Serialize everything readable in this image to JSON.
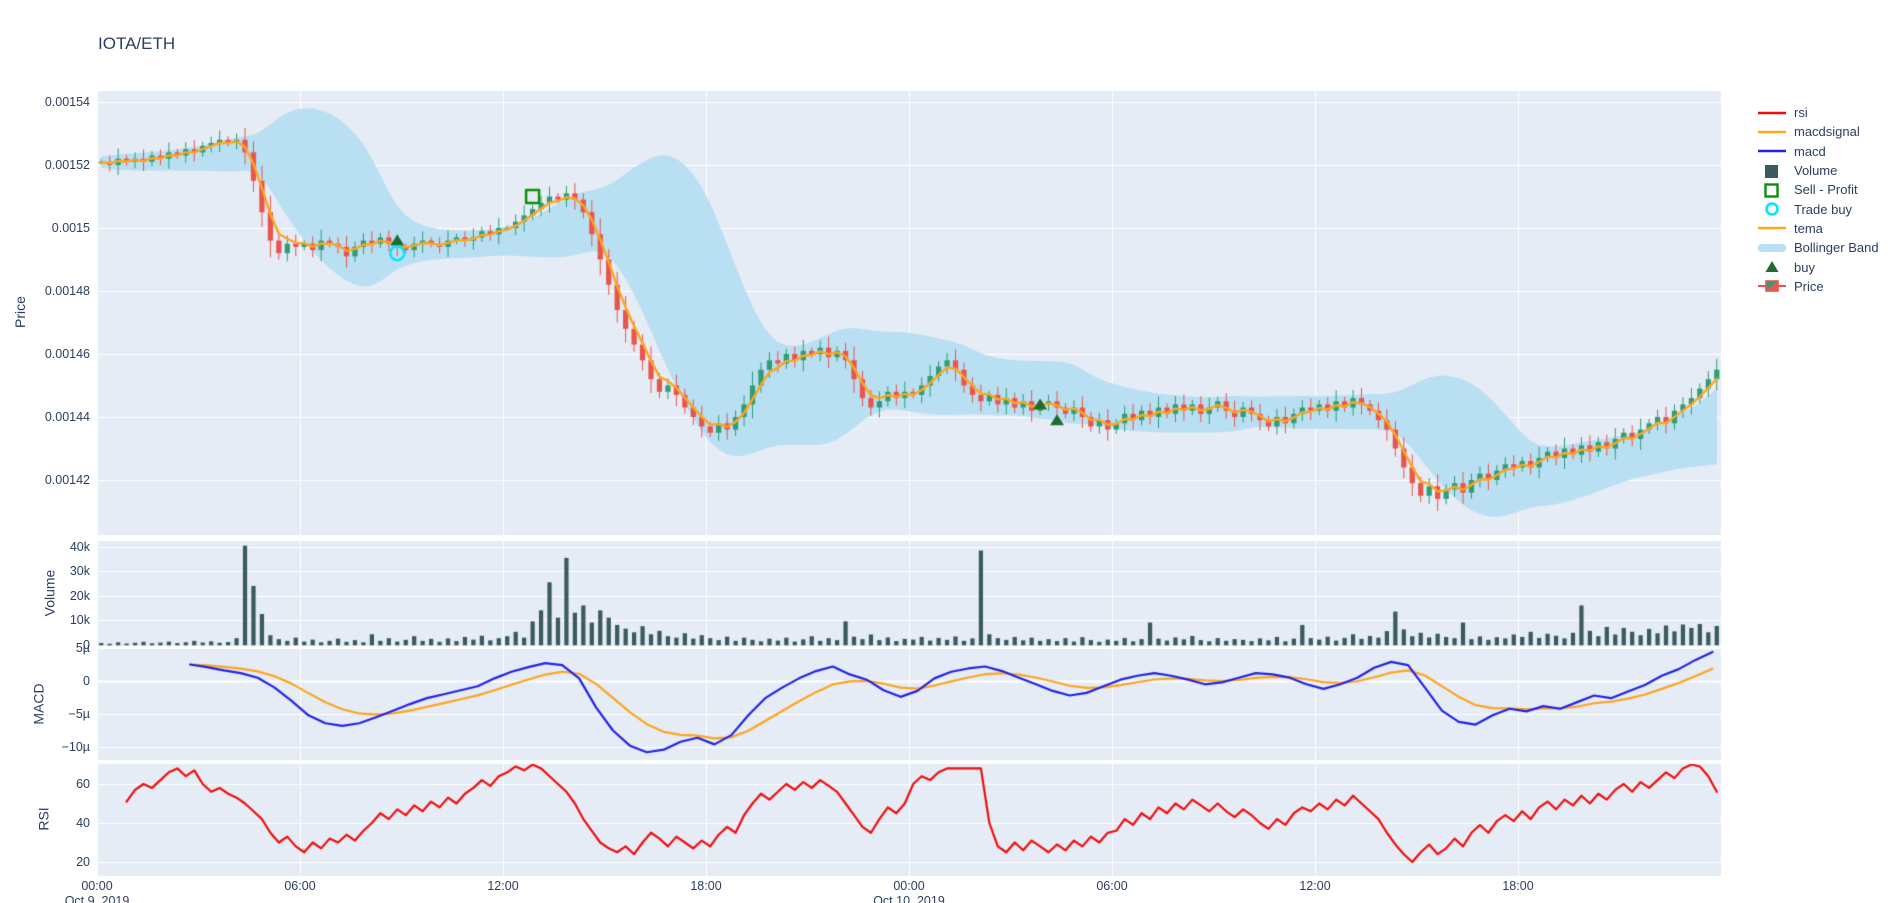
{
  "title": "IOTA/ETH",
  "colors": {
    "paper_bg": "#ffffff",
    "plot_bg": "#e5ecf6",
    "grid": "#ffffff",
    "text": "#2a3f5f",
    "candle_up": "#2d9e78",
    "candle_down": "#e8554e",
    "bollinger": "#b9dff2",
    "tema": "#ffa51e",
    "macd": "#2323e6",
    "macdsignal": "#ffa51e",
    "rsi": "#f20d0d",
    "volume_bar": "#3a5a5e",
    "buy_marker": "#226b2f",
    "sell_profit": "#0a8f0a",
    "trade_buy": "#00e5ff"
  },
  "legend": [
    {
      "label": "rsi",
      "symbol": "line",
      "color": "#f20d0d"
    },
    {
      "label": "macdsignal",
      "symbol": "line",
      "color": "#ffa51e"
    },
    {
      "label": "macd",
      "symbol": "line",
      "color": "#2323e6"
    },
    {
      "label": "Volume",
      "symbol": "square_fill",
      "color": "#3a5a5e"
    },
    {
      "label": "Sell - Profit",
      "symbol": "square_open",
      "color": "#0a8f0a"
    },
    {
      "label": "Trade buy",
      "symbol": "circle_open",
      "color": "#00e5ff"
    },
    {
      "label": "tema",
      "symbol": "line",
      "color": "#ffa51e"
    },
    {
      "label": "Bollinger Band",
      "symbol": "band",
      "color": "#b9dff2"
    },
    {
      "label": "buy",
      "symbol": "triangle",
      "color": "#226b2f"
    },
    {
      "label": "Price",
      "symbol": "candle",
      "color": "#2d9e78"
    }
  ],
  "axes": {
    "x": {
      "ticks": [
        {
          "t": 0,
          "label": "00:00"
        },
        {
          "t": 6,
          "label": "06:00"
        },
        {
          "t": 12,
          "label": "12:00"
        },
        {
          "t": 18,
          "label": "18:00"
        },
        {
          "t": 24,
          "label": "00:00"
        },
        {
          "t": 30,
          "label": "06:00"
        },
        {
          "t": 36,
          "label": "12:00"
        },
        {
          "t": 42,
          "label": "18:00"
        }
      ],
      "dates": [
        {
          "t": 0,
          "label": "Oct 9, 2019"
        },
        {
          "t": 24,
          "label": "Oct 10, 2019"
        }
      ]
    },
    "price": {
      "title": "Price",
      "ticks": [
        {
          "v": 1540,
          "label": "0.00154"
        },
        {
          "v": 1520,
          "label": "0.00152"
        },
        {
          "v": 1500,
          "label": "0.0015"
        },
        {
          "v": 1480,
          "label": "0.00148"
        },
        {
          "v": 1460,
          "label": "0.00146"
        },
        {
          "v": 1440,
          "label": "0.00144"
        },
        {
          "v": 1420,
          "label": "0.00142"
        }
      ]
    },
    "volume": {
      "title": "Volume",
      "ticks": [
        {
          "v": 40000,
          "label": "40k"
        },
        {
          "v": 30000,
          "label": "30k"
        },
        {
          "v": 20000,
          "label": "20k"
        },
        {
          "v": 10000,
          "label": "10k"
        },
        {
          "v": 0,
          "label": "0"
        }
      ]
    },
    "macd": {
      "title": "MACD",
      "ticks": [
        {
          "v": 5,
          "label": "5µ"
        },
        {
          "v": 0,
          "label": "0"
        },
        {
          "v": -5,
          "label": "−5µ"
        },
        {
          "v": -10,
          "label": "−10µ"
        }
      ]
    },
    "rsi": {
      "title": "RSI",
      "ticks": [
        {
          "v": 60,
          "label": "60"
        },
        {
          "v": 40,
          "label": "40"
        },
        {
          "v": 20,
          "label": "20"
        }
      ]
    }
  },
  "chart_data": {
    "type": "candlestick",
    "pair": "IOTA/ETH",
    "x_start": "Oct 9, 2019 00:00",
    "x_end": "Oct 11, 2019 00:00",
    "interval_minutes": 15,
    "price_unit_micro": 1e-06,
    "subplots": [
      "Price",
      "Volume",
      "MACD",
      "RSI"
    ],
    "close_micro": [
      1521,
      1520,
      1522,
      1521,
      1522,
      1521,
      1523,
      1522,
      1524,
      1523,
      1525,
      1524,
      1526,
      1527,
      1528,
      1527,
      1528,
      1524,
      1515,
      1505,
      1496,
      1492,
      1495,
      1494,
      1495,
      1493,
      1496,
      1495,
      1494,
      1491,
      1494,
      1496,
      1495,
      1497,
      1495,
      1494,
      1493,
      1495,
      1496,
      1495,
      1494,
      1496,
      1497,
      1496,
      1497,
      1499,
      1498,
      1500,
      1500,
      1502,
      1504,
      1506,
      1508,
      1510,
      1509,
      1511,
      1509,
      1505,
      1498,
      1490,
      1482,
      1474,
      1468,
      1463,
      1458,
      1452,
      1448,
      1450,
      1447,
      1443,
      1440,
      1437,
      1435,
      1438,
      1436,
      1440,
      1444,
      1450,
      1455,
      1458,
      1457,
      1460,
      1458,
      1461,
      1460,
      1462,
      1459,
      1461,
      1458,
      1452,
      1446,
      1443,
      1445,
      1448,
      1446,
      1448,
      1447,
      1450,
      1453,
      1456,
      1458,
      1455,
      1450,
      1447,
      1445,
      1447,
      1444,
      1446,
      1443,
      1445,
      1442,
      1444,
      1445,
      1443,
      1441,
      1443,
      1440,
      1437,
      1439,
      1436,
      1438,
      1441,
      1439,
      1442,
      1440,
      1443,
      1441,
      1444,
      1442,
      1444,
      1441,
      1443,
      1445,
      1442,
      1440,
      1443,
      1441,
      1439,
      1437,
      1440,
      1438,
      1441,
      1443,
      1442,
      1444,
      1442,
      1445,
      1443,
      1446,
      1444,
      1442,
      1439,
      1436,
      1430,
      1424,
      1419,
      1415,
      1418,
      1414,
      1417,
      1419,
      1416,
      1420,
      1422,
      1420,
      1423,
      1425,
      1424,
      1426,
      1424,
      1427,
      1429,
      1427,
      1430,
      1428,
      1431,
      1429,
      1432,
      1430,
      1433,
      1435,
      1433,
      1436,
      1438,
      1440,
      1438,
      1442,
      1444,
      1446,
      1449,
      1452,
      1455
    ],
    "volume": [
      600,
      300,
      900,
      400,
      700,
      1100,
      500,
      800,
      1200,
      600,
      900,
      1500,
      800,
      1300,
      700,
      1000,
      2600,
      40500,
      24000,
      12500,
      3800,
      2200,
      1500,
      2800,
      1200,
      2000,
      900,
      1500,
      2400,
      1100,
      1800,
      900,
      4200,
      1500,
      2600,
      1200,
      1900,
      3400,
      1500,
      2300,
      1100,
      2500,
      1400,
      3100,
      2000,
      3600,
      1700,
      2600,
      3400,
      5200,
      2800,
      9500,
      14000,
      25500,
      11000,
      35500,
      13000,
      16000,
      9000,
      14000,
      11000,
      8000,
      6500,
      5000,
      7500,
      4200,
      5600,
      3400,
      2800,
      4600,
      2400,
      3800,
      2600,
      1800,
      3200,
      1500,
      2800,
      1900,
      1300,
      2400,
      1600,
      2800,
      1200,
      2100,
      3400,
      1500,
      2600,
      1800,
      9500,
      3200,
      2200,
      4100,
      1800,
      2900,
      1400,
      2300,
      2000,
      3100,
      1600,
      2700,
      1900,
      3300,
      1500,
      2500,
      38500,
      4200,
      2600,
      1900,
      3100,
      1700,
      2800,
      1500,
      2200,
      1400,
      2600,
      1200,
      3000,
      1800,
      1100,
      2000,
      1500,
      2700,
      1300,
      2200,
      9000,
      2400,
      1600,
      2900,
      2100,
      3500,
      1800,
      1300,
      2600,
      1500,
      2200,
      1900,
      1400,
      2500,
      1700,
      3100,
      1300,
      2400,
      8000,
      2600,
      2000,
      3200,
      1600,
      2700,
      4200,
      2300,
      3500,
      2800,
      5500,
      13500,
      6200,
      3400,
      4800,
      2900,
      4400,
      3100,
      2600,
      9000,
      2200,
      3300,
      1900,
      3000,
      2500,
      4100,
      3100,
      5200,
      2700,
      4400,
      3600,
      2500,
      4800,
      16000,
      5600,
      3400,
      7200,
      4100,
      6800,
      5200,
      3800,
      6400,
      4600,
      7800,
      5400,
      8200,
      6800,
      8400,
      5000,
      7600
    ],
    "macd_micro": [
      null,
      null,
      null,
      null,
      null,
      2.5,
      2.1,
      1.6,
      1.2,
      0.5,
      -1.0,
      -3.0,
      -5.2,
      -6.4,
      -6.8,
      -6.4,
      -5.5,
      -4.5,
      -3.5,
      -2.6,
      -2.0,
      -1.4,
      -0.8,
      0.4,
      1.4,
      2.1,
      2.7,
      2.4,
      0.4,
      -4.0,
      -7.5,
      -9.8,
      -10.8,
      -10.4,
      -9.2,
      -8.6,
      -9.6,
      -8.2,
      -5.2,
      -2.6,
      -1.0,
      0.4,
      1.5,
      2.2,
      1.0,
      0.2,
      -1.4,
      -2.4,
      -1.5,
      0.4,
      1.4,
      1.9,
      2.2,
      1.5,
      0.5,
      -0.5,
      -1.5,
      -2.2,
      -1.8,
      -0.8,
      0.2,
      0.8,
      1.2,
      0.8,
      0.2,
      -0.5,
      -0.2,
      0.5,
      1.2,
      1.0,
      0.5,
      -0.5,
      -1.2,
      -0.5,
      0.5,
      2.0,
      2.9,
      2.4,
      -1.0,
      -4.5,
      -6.2,
      -6.6,
      -5.2,
      -4.2,
      -4.6,
      -3.8,
      -4.2,
      -3.2,
      -2.2,
      -2.6,
      -1.6,
      -0.6,
      0.8,
      1.8,
      3.2,
      4.4
    ],
    "rsi": [
      null,
      null,
      null,
      51,
      57,
      60,
      58,
      62,
      66,
      68,
      64,
      67,
      60,
      56,
      58,
      55,
      53,
      50,
      46,
      42,
      35,
      30,
      33,
      28,
      25,
      30,
      27,
      32,
      30,
      34,
      31,
      36,
      40,
      45,
      42,
      47,
      44,
      49,
      46,
      51,
      48,
      53,
      50,
      55,
      58,
      62,
      59,
      64,
      66,
      69,
      67,
      70,
      68,
      64,
      60,
      56,
      50,
      42,
      36,
      30,
      27,
      25,
      28,
      24,
      30,
      35,
      32,
      28,
      33,
      30,
      27,
      31,
      28,
      34,
      38,
      35,
      44,
      50,
      55,
      52,
      56,
      60,
      57,
      61,
      58,
      62,
      59,
      56,
      50,
      44,
      38,
      35,
      42,
      48,
      45,
      50,
      60,
      64,
      62,
      66,
      68,
      68,
      68,
      68,
      68,
      40,
      28,
      25,
      30,
      26,
      31,
      28,
      25,
      29,
      26,
      31,
      28,
      33,
      30,
      35,
      36,
      42,
      39,
      45,
      42,
      48,
      45,
      50,
      47,
      52,
      49,
      46,
      50,
      46,
      43,
      47,
      44,
      40,
      37,
      42,
      39,
      45,
      48,
      46,
      50,
      47,
      52,
      49,
      54,
      50,
      46,
      42,
      35,
      29,
      24,
      20,
      25,
      29,
      24,
      27,
      32,
      28,
      35,
      39,
      35,
      41,
      44,
      41,
      46,
      42,
      48,
      51,
      47,
      52,
      49,
      54,
      50,
      55,
      52,
      57,
      60,
      56,
      61,
      58,
      62,
      66,
      63,
      68,
      70,
      69,
      64,
      56
    ],
    "markers": {
      "buy": [
        {
          "i": 35,
          "p": 1496
        },
        {
          "i": 111,
          "p": 1444
        },
        {
          "i": 113,
          "p": 1439
        }
      ],
      "sell_profit": [
        {
          "i": 51,
          "p": 1510
        }
      ],
      "trade_buy": [
        {
          "i": 35,
          "p": 1492
        }
      ]
    }
  }
}
